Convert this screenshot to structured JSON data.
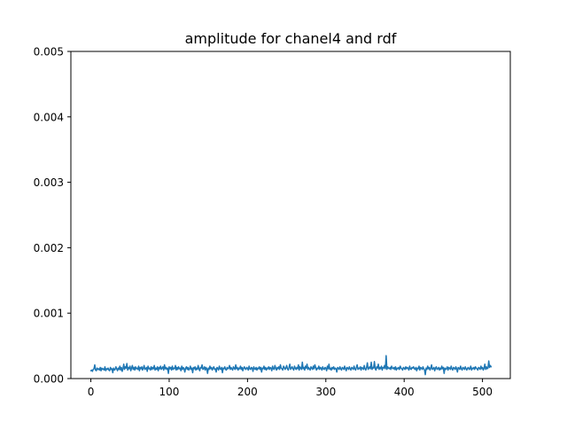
{
  "chart_data": {
    "type": "line",
    "title": "amplitude for chanel4 and rdf",
    "xlabel": "",
    "ylabel": "",
    "xlim": [
      -25.5,
      535.5
    ],
    "ylim": [
      0,
      0.005
    ],
    "x_ticks": [
      0,
      100,
      200,
      300,
      400,
      500
    ],
    "x_tick_labels": [
      "0",
      "100",
      "200",
      "300",
      "400",
      "500"
    ],
    "y_ticks": [
      0,
      0.001,
      0.002,
      0.003,
      0.004,
      0.005
    ],
    "y_tick_labels": [
      "0.000",
      "0.001",
      "0.002",
      "0.003",
      "0.004",
      "0.005"
    ],
    "grid": false,
    "series": [
      {
        "color": "#1f77b4",
        "x_start": 0,
        "x_step": 1,
        "values": [
          0.00012,
          0.00013,
          0.00011,
          0.00014,
          0.00015,
          0.00021,
          0.00013,
          0.00012,
          0.00016,
          0.00014,
          0.00015,
          0.00013,
          0.00017,
          0.00012,
          0.00016,
          0.00014,
          0.00015,
          0.00013,
          0.00018,
          0.00012,
          0.00015,
          0.00014,
          0.00016,
          0.00013,
          0.00012,
          0.00017,
          0.00014,
          0.00015,
          9e-05,
          0.00016,
          0.00013,
          0.00014,
          0.00018,
          0.00015,
          0.00012,
          0.00016,
          0.00014,
          0.00019,
          0.00013,
          0.00017,
          0.00011,
          0.00015,
          0.00022,
          0.00014,
          0.00018,
          0.00016,
          0.00023,
          0.00013,
          0.00017,
          0.00015,
          0.00019,
          0.00012,
          0.00016,
          0.0002,
          0.00014,
          0.00017,
          0.00013,
          0.00018,
          0.00015,
          0.00016,
          0.00014,
          0.00019,
          0.00012,
          0.00017,
          0.00015,
          0.00018,
          0.00013,
          0.00016,
          0.0002,
          0.00014,
          0.00015,
          0.00017,
          0.00011,
          0.00019,
          0.00015,
          0.00016,
          0.00013,
          0.00018,
          0.00014,
          0.00017,
          0.00015,
          0.0002,
          0.00013,
          0.00016,
          0.00014,
          0.00018,
          0.00012,
          0.00017,
          0.00015,
          0.00019,
          0.00014,
          0.00016,
          0.00018,
          0.00013,
          0.00021,
          0.00015,
          0.00017,
          0.00014,
          0.00016,
          8e-05,
          0.00018,
          0.00015,
          0.00017,
          0.00013,
          0.00019,
          0.00014,
          0.00016,
          0.00015,
          0.0002,
          0.00013,
          0.00017,
          0.00014,
          0.00018,
          0.00015,
          0.00016,
          0.00012,
          0.00019,
          0.00014,
          0.00017,
          0.00015,
          0.0001,
          0.00016,
          0.00018,
          0.00014,
          0.00017,
          0.00013,
          0.00015,
          0.00019,
          0.00014,
          0.00016,
          9e-05,
          0.00017,
          0.00015,
          0.00018,
          0.00013,
          0.00016,
          0.00014,
          0.0002,
          0.00015,
          0.00012,
          0.00017,
          0.00016,
          0.00021,
          0.00014,
          0.00015,
          0.00018,
          0.00013,
          0.00017,
          0.00015,
          8e-05,
          0.00016,
          0.00014,
          0.00019,
          0.00015,
          0.00017,
          0.00013,
          0.00016,
          0.00018,
          0.00014,
          0.00015,
          0.0001,
          0.00017,
          0.00016,
          0.00013,
          0.00019,
          0.00015,
          0.00014,
          0.00017,
          9e-05,
          0.00016,
          0.00015,
          0.00018,
          0.00014,
          0.00013,
          0.00017,
          0.00015,
          0.00016,
          0.0002,
          0.00014,
          0.00017,
          0.00015,
          0.00013,
          0.00018,
          0.00016,
          0.00014,
          0.00021,
          0.00015,
          0.00017,
          0.00013,
          0.00016,
          0.00015,
          0.00019,
          0.00014,
          0.00017,
          0.00012,
          0.00016,
          0.00018,
          0.00015,
          0.00014,
          0.00017,
          0.00016,
          0.00013,
          0.00019,
          0.00015,
          0.00014,
          0.00017,
          0.00016,
          0.00011,
          0.00018,
          0.00015,
          0.00014,
          0.00017,
          0.00013,
          0.00016,
          0.00015,
          0.00018,
          0.00014,
          0.00017,
          0.0001,
          0.00016,
          0.00015,
          0.00019,
          0.00014,
          0.00017,
          0.00013,
          0.00016,
          0.00015,
          0.00018,
          0.00014,
          0.00017,
          0.00016,
          0.00012,
          0.00019,
          0.00015,
          0.00014,
          0.0002,
          0.00016,
          0.00013,
          0.00017,
          0.00015,
          0.00018,
          0.00014,
          0.00021,
          0.00016,
          0.00015,
          0.00013,
          0.00019,
          0.00017,
          0.00014,
          0.00016,
          0.0002,
          0.00015,
          0.00013,
          0.00017,
          0.00022,
          0.00014,
          0.00016,
          0.00018,
          0.00015,
          0.00013,
          0.00019,
          0.00016,
          0.00014,
          0.00017,
          0.00015,
          0.00021,
          0.00013,
          0.00018,
          0.00016,
          0.00014,
          0.00025,
          0.00015,
          0.00017,
          0.00013,
          0.00019,
          0.00016,
          0.00022,
          0.00014,
          0.00017,
          0.00015,
          0.00013,
          0.00018,
          0.00016,
          0.00014,
          0.00019,
          0.00015,
          0.00021,
          0.00017,
          0.00013,
          0.00016,
          0.00015,
          0.00019,
          0.00014,
          0.00017,
          0.00016,
          0.00013,
          0.00018,
          0.00015,
          0.00014,
          0.00017,
          0.00016,
          0.00012,
          0.00019,
          0.00015,
          0.00022,
          0.00014,
          0.00016,
          0.00013,
          0.00017,
          0.00015,
          0.00018,
          0.00014,
          0.00016,
          0.00015,
          0.0001,
          0.00017,
          0.00016,
          0.00014,
          0.00018,
          0.00015,
          0.00013,
          0.00017,
          0.00016,
          0.00014,
          0.00019,
          0.00015,
          0.00012,
          0.00017,
          0.00016,
          0.00014,
          0.00018,
          0.00015,
          0.00013,
          0.00017,
          0.00016,
          0.00014,
          0.00019,
          0.00015,
          0.00013,
          0.00017,
          0.00021,
          0.00014,
          0.00016,
          0.00015,
          0.00018,
          0.00013,
          0.00017,
          0.00016,
          0.00014,
          0.0002,
          0.00015,
          0.00013,
          0.00017,
          0.00024,
          0.00014,
          0.00016,
          0.00018,
          0.00015,
          0.00025,
          0.00014,
          0.00017,
          0.00016,
          0.00026,
          0.00015,
          0.00013,
          0.00018,
          0.00016,
          0.00022,
          0.00014,
          0.00017,
          0.00015,
          0.00019,
          0.00013,
          0.00017,
          0.00016,
          0.0002,
          0.00015,
          0.00035,
          0.00014,
          0.00018,
          0.00016,
          0.00015,
          0.00017,
          0.00014,
          0.00019,
          0.00016,
          0.00015,
          0.00017,
          0.00014,
          0.00018,
          0.00013,
          0.00016,
          0.00015,
          0.00017,
          0.00014,
          0.00019,
          0.00016,
          0.00015,
          0.00013,
          0.00017,
          0.00016,
          0.00014,
          0.00018,
          0.00015,
          0.00017,
          0.00016,
          0.00013,
          0.00019,
          0.00015,
          0.00014,
          0.00017,
          0.00016,
          0.00018,
          0.00015,
          0.00014,
          0.00017,
          0.00012,
          0.00016,
          0.00015,
          0.00019,
          0.00013,
          0.00017,
          0.00016,
          0.00014,
          0.00018,
          0.00015,
          0.00013,
          6e-05,
          0.00016,
          0.00014,
          0.00019,
          0.00015,
          0.00017,
          0.00013,
          0.00016,
          0.00021,
          0.00014,
          0.00015,
          0.00017,
          0.00012,
          0.00016,
          0.00018,
          0.00014,
          0.00015,
          0.00017,
          0.00013,
          0.00016,
          0.00014,
          0.00019,
          0.00015,
          0.00017,
          8e-05,
          0.00016,
          0.00014,
          0.00015,
          0.00018,
          0.00013,
          0.00017,
          0.00016,
          0.00014,
          0.00019,
          0.00015,
          0.00013,
          0.00017,
          0.00016,
          0.00014,
          0.00018,
          0.00015,
          0.0001,
          0.00017,
          0.00016,
          0.00014,
          0.00019,
          0.00015,
          0.00013,
          0.00017,
          0.00016,
          0.00014,
          0.00018,
          0.00015,
          0.00013,
          0.00016,
          0.00017,
          0.00014,
          0.00015,
          0.00019,
          0.00013,
          0.00016,
          0.00015,
          0.00017,
          0.00014,
          0.00018,
          0.00016,
          0.00015,
          0.00013,
          0.00017,
          0.00016,
          0.00014,
          0.00019,
          0.00015,
          0.00017,
          0.00013,
          0.00016,
          0.00022,
          0.00014,
          0.00018,
          0.00015,
          0.00016,
          0.00027,
          0.00017,
          0.0002,
          0.00018
        ]
      }
    ]
  }
}
